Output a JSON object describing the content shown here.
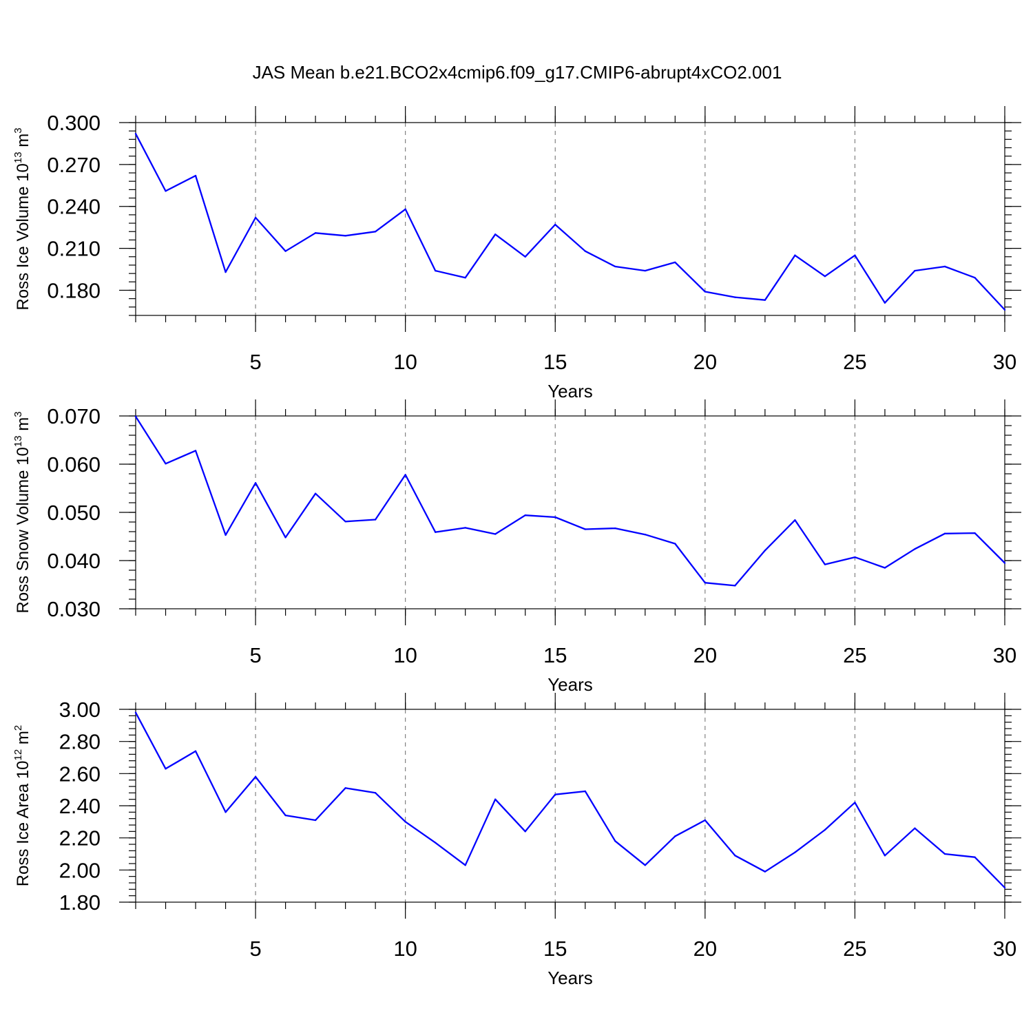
{
  "title": "JAS Mean b.e21.BCO2x4cmip6.f09_g17.CMIP6-abrupt4xCO2.001",
  "colors": {
    "line": "#0000ff",
    "axis": "#000000",
    "grid": "#777777"
  },
  "chart_data": [
    {
      "type": "line",
      "ylabel": {
        "text": "Ross Ice Volume 10",
        "sup": "13",
        "unit": " m",
        "unit_sup": "3"
      },
      "xlabel": "Years",
      "xlim": [
        1,
        30
      ],
      "ylim": [
        0.162,
        0.3
      ],
      "x_ticks": [
        5,
        10,
        15,
        20,
        25,
        30
      ],
      "y_ticks": [
        0.18,
        0.21,
        0.24,
        0.27,
        0.3
      ],
      "y_tick_labels": [
        "0.180",
        "0.210",
        "0.240",
        "0.270",
        "0.300"
      ],
      "y_minor_step": 0.006,
      "grid": "vertical dashed at major x ticks",
      "x": [
        1,
        2,
        3,
        4,
        5,
        6,
        7,
        8,
        9,
        10,
        11,
        12,
        13,
        14,
        15,
        16,
        17,
        18,
        19,
        20,
        21,
        22,
        23,
        24,
        25,
        26,
        27,
        28,
        29,
        30
      ],
      "values": [
        0.292,
        0.251,
        0.262,
        0.193,
        0.232,
        0.208,
        0.221,
        0.219,
        0.222,
        0.238,
        0.194,
        0.189,
        0.22,
        0.204,
        0.227,
        0.208,
        0.197,
        0.194,
        0.2,
        0.179,
        0.175,
        0.173,
        0.205,
        0.19,
        0.205,
        0.171,
        0.194,
        0.197,
        0.189,
        0.166
      ]
    },
    {
      "type": "line",
      "ylabel": {
        "text": "Ross Snow Volume 10",
        "sup": "13",
        "unit": " m",
        "unit_sup": "3"
      },
      "xlabel": "Years",
      "xlim": [
        1,
        30
      ],
      "ylim": [
        0.03,
        0.07
      ],
      "x_ticks": [
        5,
        10,
        15,
        20,
        25,
        30
      ],
      "y_ticks": [
        0.03,
        0.04,
        0.05,
        0.06,
        0.07
      ],
      "y_tick_labels": [
        "0.030",
        "0.040",
        "0.050",
        "0.060",
        "0.070"
      ],
      "y_minor_step": 0.002,
      "grid": "vertical dashed at major x ticks",
      "x": [
        1,
        2,
        3,
        4,
        5,
        6,
        7,
        8,
        9,
        10,
        11,
        12,
        13,
        14,
        15,
        16,
        17,
        18,
        19,
        20,
        21,
        22,
        23,
        24,
        25,
        26,
        27,
        28,
        29,
        30
      ],
      "values": [
        0.0699,
        0.0601,
        0.0628,
        0.0453,
        0.0561,
        0.0448,
        0.0539,
        0.0481,
        0.0485,
        0.0578,
        0.0459,
        0.0468,
        0.0455,
        0.0494,
        0.049,
        0.0465,
        0.0467,
        0.0454,
        0.0435,
        0.0354,
        0.0348,
        0.0421,
        0.0484,
        0.0392,
        0.0407,
        0.0385,
        0.0424,
        0.0456,
        0.0457,
        0.0395
      ]
    },
    {
      "type": "line",
      "ylabel": {
        "text": "Ross Ice Area 10",
        "sup": "12",
        "unit": " m",
        "unit_sup": "2"
      },
      "xlabel": "Years",
      "xlim": [
        1,
        30
      ],
      "ylim": [
        1.8,
        3.0
      ],
      "x_ticks": [
        5,
        10,
        15,
        20,
        25,
        30
      ],
      "y_ticks": [
        1.8,
        2.0,
        2.2,
        2.4,
        2.6,
        2.8,
        3.0
      ],
      "y_tick_labels": [
        "1.80",
        "2.00",
        "2.20",
        "2.40",
        "2.60",
        "2.80",
        "3.00"
      ],
      "y_minor_step": 0.04,
      "grid": "vertical dashed at major x ticks",
      "x": [
        1,
        2,
        3,
        4,
        5,
        6,
        7,
        8,
        9,
        10,
        11,
        12,
        13,
        14,
        15,
        16,
        17,
        18,
        19,
        20,
        21,
        22,
        23,
        24,
        25,
        26,
        27,
        28,
        29,
        30
      ],
      "values": [
        2.98,
        2.63,
        2.74,
        2.36,
        2.58,
        2.34,
        2.31,
        2.51,
        2.48,
        2.3,
        2.17,
        2.03,
        2.44,
        2.24,
        2.47,
        2.49,
        2.18,
        2.03,
        2.21,
        2.31,
        2.09,
        1.99,
        2.11,
        2.25,
        2.42,
        2.09,
        2.26,
        2.1,
        2.08,
        1.89
      ]
    }
  ]
}
